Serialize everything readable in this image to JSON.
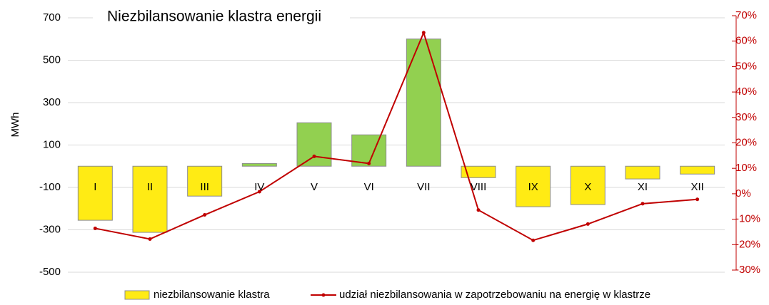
{
  "chart_data": {
    "type": "bar",
    "title": "Niezbilansowanie klastra energii",
    "y_label": "MWh",
    "categories": [
      "I",
      "II",
      "III",
      "IV",
      "V",
      "VI",
      "VII",
      "VIII",
      "IX",
      "X",
      "XI",
      "XII"
    ],
    "series": [
      {
        "name": "niezbilansowanie klastra",
        "type": "bar",
        "color": "#ffeb14",
        "positive_color": "#92d050",
        "values": [
          -255,
          -312,
          -141,
          13,
          205,
          148,
          600,
          -54,
          -191,
          -181,
          -60,
          -37
        ]
      },
      {
        "name": "udział niezbilansowania w zapotrzebowaniu na energię w klastrze",
        "type": "line",
        "axis": "y2",
        "color": "#c00000",
        "values": [
          -13.6,
          -17.8,
          -8.3,
          0.8,
          14.7,
          11.9,
          63.3,
          -6.4,
          -18.3,
          -11.9,
          -3.9,
          -2.2
        ]
      }
    ],
    "ylim": [
      -500,
      700
    ],
    "yticks": [
      -500,
      -300,
      -100,
      100,
      300,
      500,
      700
    ],
    "y2lim": [
      -30,
      70
    ],
    "y2ticks": [
      {
        "value": -30,
        "label": "-30%"
      },
      {
        "value": -20,
        "label": "-20%"
      },
      {
        "value": -10,
        "label": "-10%"
      },
      {
        "value": 0,
        "label": "0%"
      },
      {
        "value": 10,
        "label": "10%"
      },
      {
        "value": 20,
        "label": "20%"
      },
      {
        "value": 30,
        "label": "30%"
      },
      {
        "value": 40,
        "label": "40%"
      },
      {
        "value": 50,
        "label": "50%"
      },
      {
        "value": 60,
        "label": "60%"
      },
      {
        "value": 70,
        "label": "70%"
      }
    ],
    "grid": true
  }
}
